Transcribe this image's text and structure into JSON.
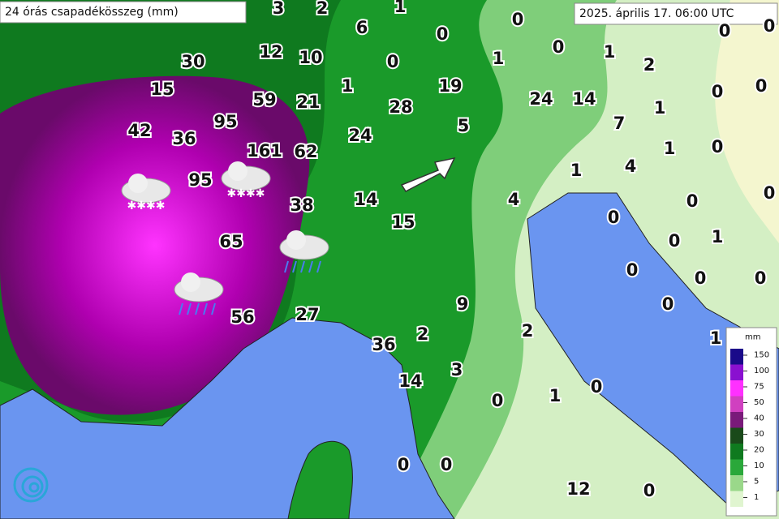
{
  "title": "24 órás csapadékösszeg (mm)",
  "timestamp": "2025. április 17. 06:00 UTC",
  "labels": [
    3,
    2,
    1,
    6,
    0,
    0,
    0,
    0,
    30,
    12,
    10,
    0,
    1,
    0,
    1,
    2,
    15,
    59,
    21,
    1,
    28,
    19,
    24,
    14,
    1,
    0,
    0,
    42,
    36,
    95,
    161,
    62,
    24,
    5,
    7,
    1,
    0,
    95,
    38,
    14,
    15,
    1,
    4,
    4,
    0,
    0,
    0,
    1,
    0,
    0,
    65,
    0,
    0,
    0,
    56,
    27,
    9,
    2,
    2,
    36,
    1,
    14,
    3,
    0,
    1,
    0,
    0,
    0,
    12,
    0
  ],
  "legend": {
    "unit": "mm",
    "ticks": [
      150,
      100,
      75,
      50,
      40,
      30,
      20,
      10,
      5,
      1
    ]
  }
}
